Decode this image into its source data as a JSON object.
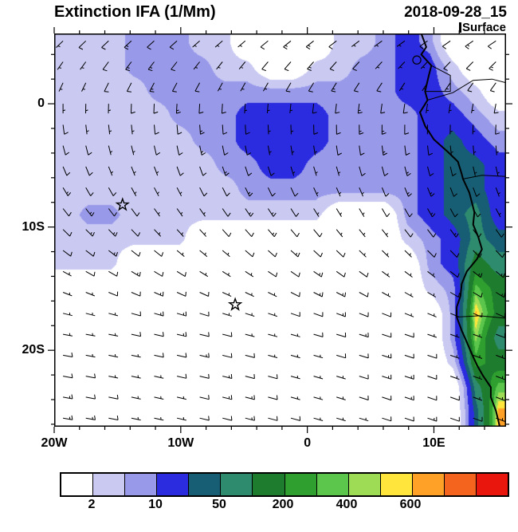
{
  "header": {
    "title": "Extinction IFA (1/Mm)",
    "datetime": "2018-09-28_15",
    "level": "Surface"
  },
  "chart_data": {
    "type": "heatmap",
    "subtype": "filled-contour map with wind barbs and coastline",
    "title": "Extinction IFA (1/Mm)",
    "valid_time": "2018-09-28_15",
    "level": "Surface",
    "units": "1/Mm",
    "lon_range": [
      -20,
      15.7
    ],
    "lat_range": [
      -26.2,
      5.7
    ],
    "xticks": [
      {
        "value": -20,
        "label": "20W"
      },
      {
        "value": -10,
        "label": "10W"
      },
      {
        "value": 0,
        "label": "0"
      },
      {
        "value": 10,
        "label": "10E"
      }
    ],
    "yticks": [
      {
        "value": 0,
        "label": "0"
      },
      {
        "value": -10,
        "label": "10S"
      },
      {
        "value": -20,
        "label": "20S"
      }
    ],
    "colorbar": {
      "levels": [
        2,
        5,
        10,
        25,
        50,
        100,
        200,
        300,
        400,
        500,
        600,
        700,
        800
      ],
      "labeled_levels": [
        "2",
        "10",
        "50",
        "200",
        "400",
        "600"
      ],
      "colors": [
        "#FFFFFF",
        "#C9C9F2",
        "#9999EA",
        "#2B2BE0",
        "#175E75",
        "#2E8B6E",
        "#1E7C2E",
        "#2FA02F",
        "#5BC64B",
        "#9EDC55",
        "#FFE53C",
        "#FFA126",
        "#F4641E",
        "#E8160C"
      ]
    },
    "field_grid": {
      "units": "1/Mm",
      "nx": 20,
      "ny": 16,
      "lon_start": -19.1,
      "lon_step": 1.8,
      "lat_start": 5.0,
      "lat_step": -2.0,
      "values": [
        [
          3,
          3,
          3,
          7,
          7,
          7,
          3,
          3,
          0.5,
          0.5,
          0.5,
          0.5,
          3,
          3,
          7,
          15,
          7,
          0.5,
          0.5,
          0.5
        ],
        [
          3,
          3,
          3,
          7,
          7,
          7,
          7,
          3,
          3,
          0.5,
          0.5,
          3,
          3,
          7,
          7,
          15,
          15,
          3,
          0.5,
          0.5
        ],
        [
          3,
          3,
          3,
          3,
          7,
          7,
          7,
          7,
          7,
          7,
          7,
          7,
          7,
          7,
          7,
          15,
          15,
          7,
          3,
          0.5
        ],
        [
          3,
          3,
          3,
          3,
          3,
          7,
          7,
          7,
          15,
          15,
          15,
          15,
          7,
          7,
          7,
          7,
          15,
          15,
          7,
          3
        ],
        [
          3,
          3,
          3,
          3,
          3,
          3,
          7,
          7,
          15,
          15,
          15,
          15,
          7,
          7,
          7,
          7,
          15,
          35,
          15,
          7
        ],
        [
          3,
          3,
          3,
          3,
          3,
          3,
          3,
          7,
          7,
          15,
          15,
          7,
          7,
          7,
          7,
          7,
          15,
          35,
          35,
          15
        ],
        [
          3,
          3,
          3,
          3,
          3,
          3,
          3,
          3,
          7,
          7,
          7,
          7,
          7,
          7,
          7,
          7,
          15,
          35,
          35,
          15
        ],
        [
          3,
          7,
          7,
          3,
          3,
          3,
          3,
          3,
          3,
          3,
          3,
          3,
          0.5,
          0.5,
          0.5,
          7,
          15,
          35,
          70,
          15
        ],
        [
          3,
          3,
          3,
          3,
          3,
          3,
          0.5,
          0.5,
          0.5,
          0.5,
          0.5,
          0.5,
          0.5,
          0.5,
          0.5,
          3,
          7,
          15,
          70,
          35
        ],
        [
          3,
          3,
          3,
          0.5,
          0.5,
          0.5,
          0.5,
          0.5,
          0.5,
          0.5,
          0.5,
          0.5,
          0.5,
          0.5,
          0.5,
          0.5,
          7,
          15,
          150,
          70
        ],
        [
          0.5,
          0.5,
          0.5,
          0.5,
          0.5,
          0.5,
          0.5,
          0.5,
          0.5,
          0.5,
          0.5,
          0.5,
          0.5,
          0.5,
          0.5,
          0.5,
          3,
          7,
          350,
          150
        ],
        [
          0.5,
          0.5,
          0.5,
          0.5,
          0.5,
          0.5,
          0.5,
          0.5,
          0.5,
          0.5,
          0.5,
          0.5,
          0.5,
          0.5,
          0.5,
          0.5,
          0.5,
          7,
          650,
          150
        ],
        [
          0.5,
          0.5,
          0.5,
          0.5,
          0.5,
          0.5,
          0.5,
          0.5,
          0.5,
          0.5,
          0.5,
          0.5,
          0.5,
          0.5,
          0.5,
          0.5,
          0.5,
          7,
          450,
          70
        ],
        [
          0.5,
          0.5,
          0.5,
          0.5,
          0.5,
          0.5,
          0.5,
          0.5,
          0.5,
          0.5,
          0.5,
          0.5,
          0.5,
          0.5,
          0.5,
          0.5,
          0.5,
          3,
          250,
          150
        ],
        [
          0.5,
          0.5,
          0.5,
          0.5,
          0.5,
          0.5,
          0.5,
          0.5,
          0.5,
          0.5,
          0.5,
          0.5,
          0.5,
          0.5,
          0.5,
          0.5,
          0.5,
          0.5,
          70,
          350
        ],
        [
          0.5,
          0.5,
          0.5,
          0.5,
          0.5,
          0.5,
          0.5,
          0.5,
          0.5,
          0.5,
          0.5,
          0.5,
          0.5,
          0.5,
          0.5,
          0.5,
          0.5,
          0.5,
          35,
          650
        ]
      ]
    },
    "markers": [
      {
        "shape": "star",
        "lon": -14.6,
        "lat": -8.2
      },
      {
        "shape": "star",
        "lon": -5.7,
        "lat": -16.3
      }
    ],
    "coastline": [
      [
        9.0,
        5.7
      ],
      [
        9.4,
        4.6
      ],
      [
        9.0,
        4.0
      ],
      [
        9.8,
        3.1
      ],
      [
        9.6,
        2.3
      ],
      [
        9.3,
        1.0
      ],
      [
        9.5,
        0.3
      ],
      [
        8.9,
        -0.7
      ],
      [
        9.3,
        -1.8
      ],
      [
        10.0,
        -2.9
      ],
      [
        11.1,
        -3.9
      ],
      [
        11.9,
        -4.7
      ],
      [
        12.2,
        -5.7
      ],
      [
        12.3,
        -6.1
      ],
      [
        12.8,
        -7.2
      ],
      [
        13.2,
        -8.8
      ],
      [
        13.1,
        -9.8
      ],
      [
        13.5,
        -10.8
      ],
      [
        13.8,
        -11.8
      ],
      [
        13.4,
        -12.6
      ],
      [
        12.6,
        -13.6
      ],
      [
        12.2,
        -14.6
      ],
      [
        12.1,
        -15.6
      ],
      [
        11.8,
        -16.5
      ],
      [
        11.8,
        -17.3
      ],
      [
        12.2,
        -18.4
      ],
      [
        12.5,
        -19.1
      ],
      [
        13.0,
        -20.3
      ],
      [
        13.4,
        -21.2
      ],
      [
        13.9,
        -22.1
      ],
      [
        14.5,
        -23.0
      ],
      [
        14.5,
        -23.8
      ],
      [
        14.9,
        -24.9
      ],
      [
        15.2,
        -26.2
      ]
    ],
    "borders": [
      [
        [
          9.8,
          3.1
        ],
        [
          11.3,
          2.3
        ],
        [
          11.3,
          1.0
        ],
        [
          9.3,
          1.0
        ]
      ],
      [
        [
          9.5,
          0.3
        ],
        [
          11.5,
          0.9
        ],
        [
          13.1,
          1.9
        ],
        [
          14.6,
          2.0
        ],
        [
          15.7,
          1.7
        ]
      ],
      [
        [
          12.3,
          -6.1
        ],
        [
          13.8,
          -5.8
        ],
        [
          15.7,
          -5.9
        ]
      ],
      [
        [
          11.8,
          -17.3
        ],
        [
          13.6,
          -17.2
        ],
        [
          15.7,
          -17.4
        ]
      ]
    ],
    "islands": [
      {
        "lon": 8.65,
        "lat": 3.55,
        "r": 0.32
      }
    ],
    "wind_barbs": {
      "description": "grid of surface wind barbs; southeasterly trade winds south of the equator veering to southerly-southwesterly near and north of the equator",
      "grid_spacing_deg": [
        1.8,
        1.7
      ],
      "typical_speed_kt": [
        5,
        13
      ]
    }
  }
}
